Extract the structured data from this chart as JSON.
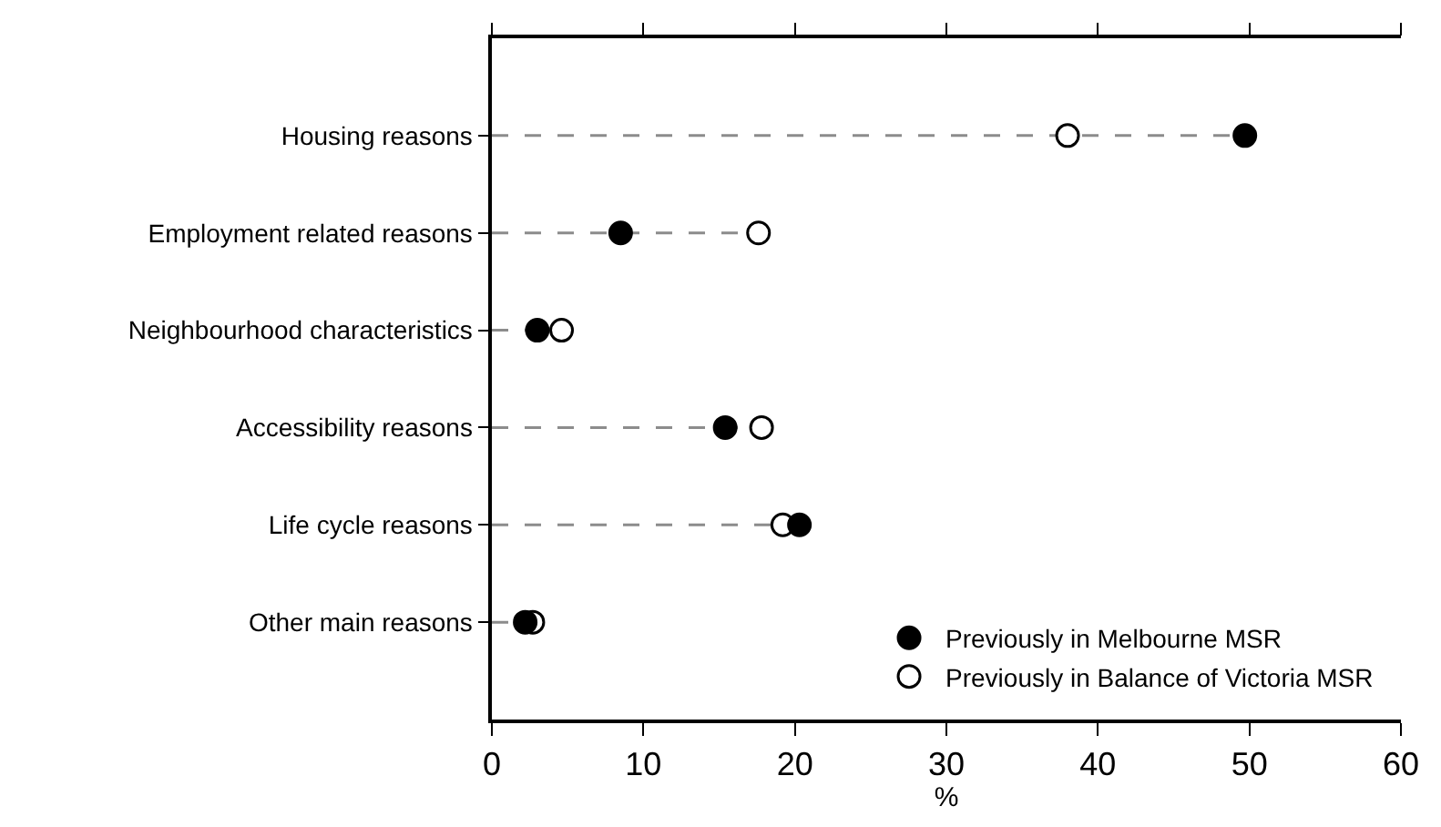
{
  "chart_data": {
    "type": "lollipop",
    "orientation": "horizontal",
    "xlabel": "%",
    "categories": [
      "Housing reasons",
      "Employment related reasons",
      "Neighbourhood characteristics",
      "Accessibility reasons",
      "Life cycle reasons",
      "Other main reasons"
    ],
    "series": [
      {
        "name": "Previously in Melbourne MSR",
        "color": "#000000",
        "values": [
          49.7,
          8.5,
          3.0,
          15.4,
          20.3,
          2.2
        ]
      },
      {
        "name": "Previously in Balance of Victoria MSR",
        "color": "#ffffff",
        "values": [
          38.0,
          17.6,
          4.6,
          17.8,
          19.2,
          2.7
        ]
      }
    ],
    "xlim": [
      0,
      60
    ],
    "xticks": [
      0,
      10,
      20,
      30,
      40,
      50,
      60
    ],
    "legend": "bottom right",
    "marker": "circle",
    "line_style": "dashed"
  }
}
